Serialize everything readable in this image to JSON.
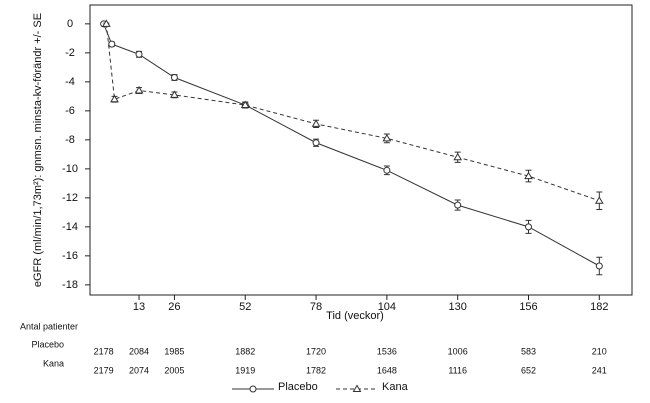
{
  "chart_data": {
    "type": "line",
    "y_label": "eGFR (ml/min/1,73m²): gnmsn. minsta-kv-förändr +/- SE",
    "x_label": "Tid (veckor)",
    "xlim": [
      -5,
      194
    ],
    "ylim": [
      -18.7,
      1.3
    ],
    "xticks": [
      13,
      26,
      52,
      78,
      104,
      130,
      156,
      182
    ],
    "yticks": [
      0,
      -2,
      -4,
      -6,
      -8,
      -10,
      -12,
      -14,
      -16,
      -18
    ],
    "legend": "bottom",
    "series": [
      {
        "name": "Placebo",
        "color": "#333333",
        "marker": "circle",
        "dash": "solid",
        "x": [
          0,
          3,
          13,
          26,
          52,
          78,
          104,
          130,
          156,
          182
        ],
        "values": [
          0,
          -1.4,
          -2.1,
          -3.7,
          -5.6,
          -8.2,
          -10.1,
          -12.5,
          -14.0,
          -16.7
        ],
        "errors": [
          0.05,
          0.15,
          0.2,
          0.2,
          0.2,
          0.25,
          0.3,
          0.35,
          0.45,
          0.6
        ]
      },
      {
        "name": "Kana",
        "color": "#333333",
        "marker": "triangle",
        "dash": "dashed",
        "x": [
          1,
          4,
          13,
          26,
          52,
          78,
          104,
          130,
          156,
          182
        ],
        "values": [
          0,
          -5.2,
          -4.6,
          -4.9,
          -5.6,
          -6.9,
          -7.9,
          -9.2,
          -10.5,
          -12.2
        ],
        "errors": [
          0.05,
          0.2,
          0.2,
          0.2,
          0.2,
          0.25,
          0.3,
          0.35,
          0.4,
          0.6
        ]
      }
    ],
    "at_risk": {
      "title": "Antal patienter",
      "x": [
        0,
        13,
        26,
        52,
        78,
        104,
        130,
        156,
        182
      ],
      "rows": [
        {
          "name": "Placebo",
          "values": [
            2178,
            2084,
            1985,
            1882,
            1720,
            1536,
            1006,
            583,
            210
          ]
        },
        {
          "name": "Kana",
          "values": [
            2179,
            2074,
            2005,
            1919,
            1782,
            1648,
            1116,
            652,
            241
          ]
        }
      ]
    }
  }
}
